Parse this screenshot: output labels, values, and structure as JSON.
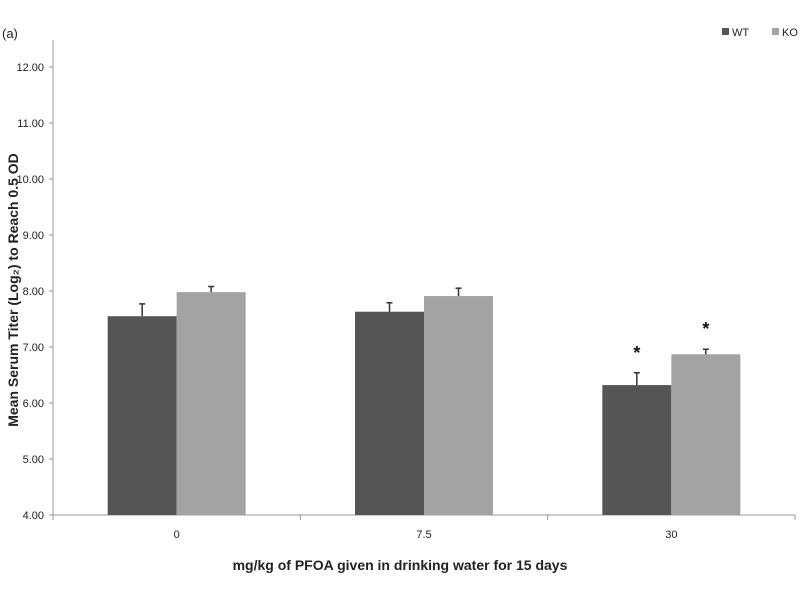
{
  "chart_data": {
    "type": "bar",
    "panel_label": "(a)",
    "title": "",
    "xlabel": "mg/kg of PFOA given in drinking water for 15 days",
    "ylabel": "Mean Serum Titer (Log₂) to Reach 0.5 OD",
    "categories": [
      "0",
      "7.5",
      "30"
    ],
    "series": [
      {
        "name": "WT",
        "color": "#555555",
        "values": [
          7.55,
          7.63,
          6.32
        ],
        "errors": [
          0.22,
          0.16,
          0.22
        ],
        "significant": [
          false,
          false,
          true
        ]
      },
      {
        "name": "KO",
        "color": "#a3a3a3",
        "values": [
          7.98,
          7.91,
          6.87
        ],
        "errors": [
          0.1,
          0.14,
          0.09
        ],
        "significant": [
          false,
          false,
          true
        ]
      }
    ],
    "ylim": [
      4,
      12
    ],
    "yticks": [
      "4.00",
      "5.00",
      "6.00",
      "7.00",
      "8.00",
      "9.00",
      "10.00",
      "11.00",
      "12.00"
    ],
    "significance_marker": "*",
    "legend": "top-right",
    "grid": false
  }
}
